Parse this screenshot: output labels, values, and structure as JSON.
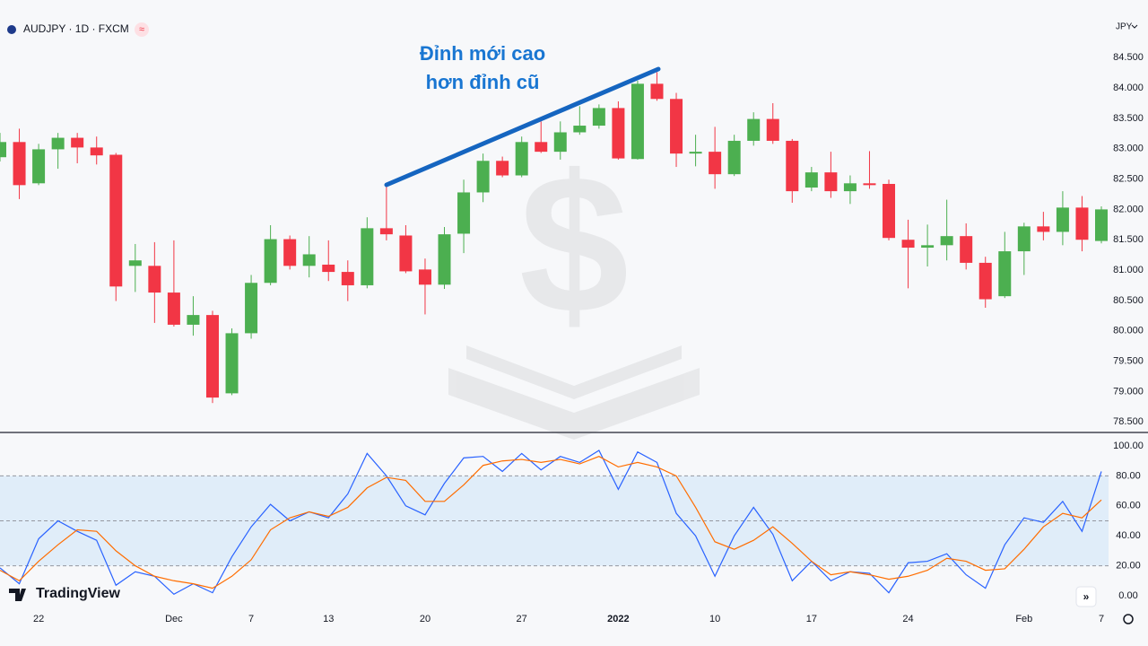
{
  "header": {
    "symbol": "AUDJPY · 1D · FXCM",
    "currency": "JPY",
    "branding": "TradingView"
  },
  "chart_data": [
    {
      "type": "candlestick",
      "annotation": [
        "Đỉnh mới cao",
        "hơn đỉnh cũ"
      ],
      "categories": [
        null,
        null,
        "22",
        null,
        null,
        null,
        null,
        null,
        null,
        "Dec",
        null,
        null,
        null,
        "7",
        null,
        null,
        null,
        "13",
        null,
        null,
        null,
        null,
        "20",
        null,
        null,
        null,
        null,
        "27",
        null,
        null,
        null,
        null,
        "2022",
        null,
        null,
        null,
        null,
        "10",
        null,
        null,
        null,
        null,
        "17",
        null,
        null,
        null,
        null,
        "24",
        null,
        null,
        null,
        null,
        null,
        "Feb",
        null,
        null,
        null,
        "7"
      ],
      "open": [
        82.86,
        83.11,
        82.43,
        82.99,
        83.18,
        83.02,
        82.9,
        81.07,
        81.07,
        80.63,
        80.1,
        80.26,
        78.97,
        79.96,
        80.79,
        81.51,
        81.07,
        81.09,
        80.97,
        80.75,
        81.69,
        81.57,
        81.01,
        80.76,
        81.6,
        82.28,
        82.8,
        82.56,
        83.11,
        82.95,
        83.27,
        83.38,
        83.67,
        82.83,
        84.07,
        83.82,
        82.92,
        82.95,
        82.58,
        83.13,
        83.49,
        83.13,
        82.36,
        82.61,
        82.3,
        82.43,
        82.42,
        81.5,
        81.37,
        81.41,
        81.56,
        81.12,
        80.57,
        81.31,
        81.72,
        81.63,
        82.03,
        81.48
      ],
      "high": [
        83.26,
        83.33,
        83.08,
        83.26,
        83.26,
        83.2,
        82.93,
        81.43,
        81.46,
        81.49,
        80.57,
        80.33,
        80.04,
        80.92,
        81.74,
        81.57,
        81.56,
        81.49,
        81.16,
        81.87,
        82.4,
        81.74,
        81.19,
        81.71,
        82.49,
        82.92,
        82.87,
        83.2,
        83.45,
        83.45,
        83.7,
        83.73,
        83.78,
        84.12,
        84.26,
        83.92,
        83.23,
        83.36,
        83.23,
        83.6,
        83.75,
        83.16,
        82.7,
        82.95,
        82.56,
        82.96,
        82.49,
        81.83,
        81.75,
        82.16,
        81.77,
        81.22,
        81.63,
        81.78,
        81.96,
        82.3,
        82.22,
        82.05
      ],
      "low": [
        82.79,
        82.17,
        82.4,
        82.67,
        82.76,
        82.74,
        80.49,
        80.64,
        80.13,
        80.07,
        79.92,
        78.81,
        78.94,
        79.87,
        80.75,
        81.01,
        80.88,
        80.82,
        80.49,
        80.7,
        81.49,
        80.95,
        80.27,
        80.69,
        81.28,
        82.12,
        82.53,
        82.53,
        82.93,
        82.82,
        83.23,
        83.33,
        82.82,
        82.82,
        83.79,
        82.7,
        82.71,
        82.34,
        82.55,
        83.05,
        83.08,
        82.11,
        82.3,
        82.19,
        82.09,
        82.34,
        81.49,
        80.7,
        81.06,
        81.16,
        81.01,
        80.38,
        80.54,
        80.92,
        81.49,
        81.41,
        81.31,
        81.44
      ],
      "close": [
        83.11,
        82.4,
        82.99,
        83.18,
        83.02,
        82.89,
        80.73,
        81.16,
        80.63,
        80.1,
        80.26,
        78.9,
        79.96,
        80.79,
        81.51,
        81.07,
        81.26,
        80.97,
        80.75,
        81.69,
        81.59,
        80.98,
        80.76,
        81.59,
        82.28,
        82.8,
        82.56,
        83.11,
        82.95,
        83.27,
        83.38,
        83.67,
        82.84,
        84.07,
        83.82,
        82.92,
        82.95,
        82.58,
        83.13,
        83.49,
        83.13,
        82.3,
        82.61,
        82.3,
        82.43,
        82.4,
        81.53,
        81.37,
        81.41,
        81.56,
        81.12,
        80.52,
        81.31,
        81.72,
        81.63,
        82.03,
        81.5,
        82.0
      ],
      "up_color": "#4caf50",
      "down_color": "#f23645",
      "ylim": [
        78.34,
        85.45
      ],
      "yticks": [
        {
          "value": 78.5,
          "label": "78.500"
        },
        {
          "value": 79,
          "label": "79.000"
        },
        {
          "value": 79.5,
          "label": "79.500"
        },
        {
          "value": 80,
          "label": "80.000"
        },
        {
          "value": 80.5,
          "label": "80.500"
        },
        {
          "value": 81,
          "label": "81.000"
        },
        {
          "value": 81.5,
          "label": "81.500"
        },
        {
          "value": 82,
          "label": "82.000"
        },
        {
          "value": 82.5,
          "label": "82.500"
        },
        {
          "value": 83,
          "label": "83.000"
        },
        {
          "value": 83.5,
          "label": "83.500"
        },
        {
          "value": 84,
          "label": "84.000"
        },
        {
          "value": 84.5,
          "label": "84.500"
        }
      ],
      "grid": false
    },
    {
      "type": "line",
      "series": [
        {
          "color": "#2962ff",
          "values": [
            18.6,
            8,
            38,
            50,
            43,
            37,
            7,
            16,
            13,
            1,
            8,
            2,
            26,
            46,
            61,
            50,
            56,
            52,
            68,
            95,
            80,
            60,
            54,
            75,
            92,
            93,
            83,
            95,
            84,
            93,
            89,
            97,
            71,
            96,
            89,
            55,
            40,
            13,
            40,
            59,
            41,
            10,
            23,
            10,
            16,
            15,
            2,
            22,
            23,
            28,
            14,
            5,
            34,
            52,
            49,
            63,
            43,
            83
          ]
        },
        {
          "color": "#ff6d00",
          "values": [
            17,
            10,
            23,
            34,
            44,
            43,
            30,
            20,
            13,
            10,
            8,
            5,
            13,
            24,
            44,
            52,
            56,
            53,
            59,
            72,
            79,
            77,
            63,
            63,
            74,
            87,
            90,
            91,
            89,
            91,
            88,
            93,
            86,
            89,
            86,
            80,
            59,
            36,
            31,
            37,
            46,
            35,
            23,
            14,
            16,
            14,
            11,
            13,
            17,
            25,
            23,
            17,
            18,
            31,
            46,
            55,
            52,
            64
          ]
        }
      ],
      "levels": [
        20,
        50,
        80
      ],
      "band_color": "#2196f3",
      "ylim": [
        -9.6,
        108.4
      ],
      "yticks": [
        {
          "value": 0,
          "label": "0.00"
        },
        {
          "value": 20,
          "label": "20.00"
        },
        {
          "value": 40,
          "label": "40.00"
        },
        {
          "value": 60,
          "label": "60.00"
        },
        {
          "value": 80,
          "label": "80.00"
        },
        {
          "value": 100,
          "label": "100.00"
        }
      ]
    }
  ]
}
